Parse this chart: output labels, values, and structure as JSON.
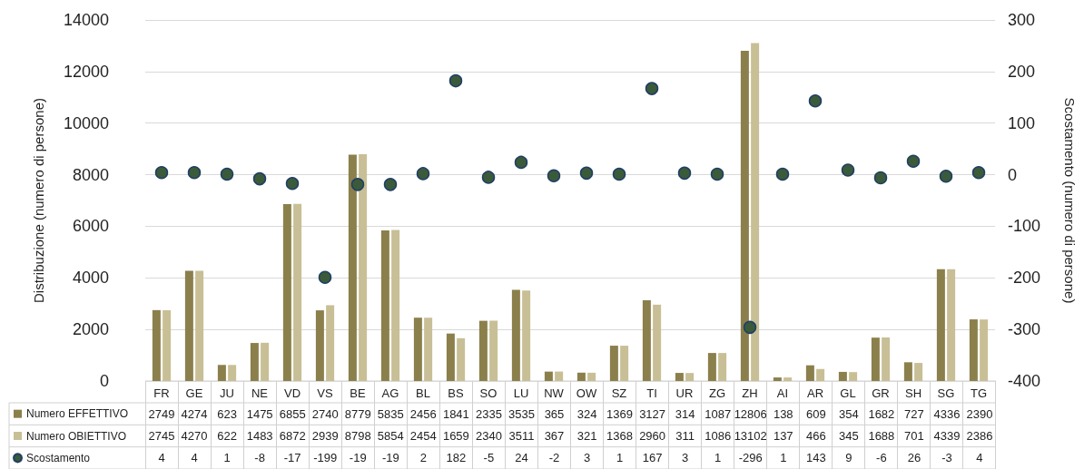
{
  "chart_data": {
    "type": "bar",
    "ylabel": "Distribuzione (numero di persone)",
    "y2label": "Scostamento (numero di persone)",
    "categories": [
      "FR",
      "GE",
      "JU",
      "NE",
      "VD",
      "VS",
      "BE",
      "AG",
      "BL",
      "BS",
      "SO",
      "LU",
      "NW",
      "OW",
      "SZ",
      "TI",
      "UR",
      "ZG",
      "ZH",
      "AI",
      "AR",
      "GL",
      "GR",
      "SH",
      "SG",
      "TG"
    ],
    "series": [
      {
        "name": "Numero EFFETTIVO",
        "color": "#8b7f4c",
        "values": [
          2749,
          4274,
          623,
          1475,
          6855,
          2740,
          8779,
          5835,
          2456,
          1841,
          2335,
          3535,
          365,
          324,
          1369,
          3127,
          314,
          1087,
          12806,
          138,
          609,
          354,
          1682,
          727,
          4336,
          2390
        ]
      },
      {
        "name": "Numero OBIETTIVO",
        "color": "#c8bf96",
        "values": [
          2745,
          4270,
          622,
          1483,
          6872,
          2939,
          8798,
          5854,
          2454,
          1659,
          2340,
          3511,
          367,
          321,
          1368,
          2960,
          311,
          1086,
          13102,
          137,
          466,
          345,
          1688,
          701,
          4339,
          2386
        ]
      },
      {
        "name": "Scostamento",
        "type": "scatter",
        "axis": "y2",
        "color": "#3b5a3a",
        "values": [
          4,
          4,
          1,
          -8,
          -17,
          -199,
          -19,
          -19,
          2,
          182,
          -5,
          24,
          -2,
          3,
          1,
          167,
          3,
          1,
          -296,
          1,
          143,
          9,
          -6,
          26,
          -3,
          4
        ]
      }
    ],
    "ylim": [
      0,
      14000
    ],
    "yticks": [
      0,
      2000,
      4000,
      6000,
      8000,
      10000,
      12000,
      14000
    ],
    "y2lim": [
      -400,
      300
    ],
    "y2ticks": [
      -400,
      -300,
      -200,
      -100,
      0,
      100,
      200,
      300
    ],
    "grid": "y",
    "legend": "bottom left",
    "marker": "circle",
    "data_labels": true
  }
}
